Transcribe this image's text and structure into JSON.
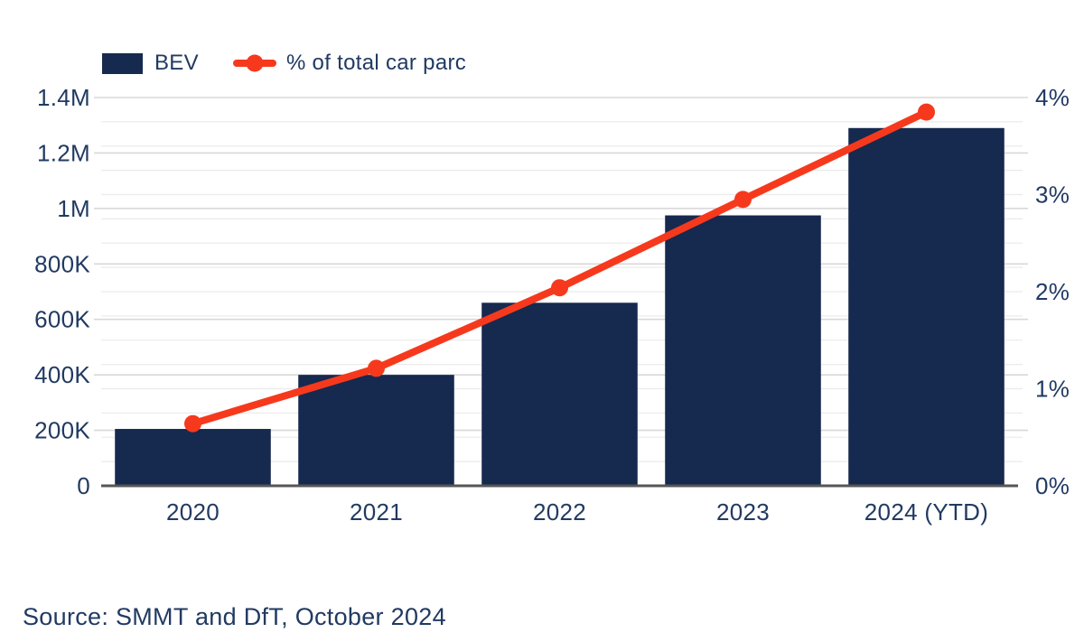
{
  "colors": {
    "navy": "#16294e",
    "orange": "#f6391d",
    "text": "#213a62",
    "grid_major": "#d8d8d8",
    "grid_minor": "#ebebeb",
    "axis_line": "#565656"
  },
  "legend": {
    "bar_label": "BEV",
    "line_label": "% of total car parc"
  },
  "chart_data": {
    "type": "bar",
    "categories": [
      "2020",
      "2021",
      "2022",
      "2023",
      "2024 (YTD)"
    ],
    "series": [
      {
        "name": "BEV",
        "type": "bar",
        "axis": "left",
        "color": "#16294e",
        "values": [
          205000,
          400000,
          660000,
          975000,
          1290000
        ]
      },
      {
        "name": "% of total car parc",
        "type": "line",
        "axis": "right",
        "color": "#f6391d",
        "values": [
          0.64,
          1.21,
          2.04,
          2.95,
          3.85
        ]
      }
    ],
    "left_axis": {
      "ticks": [
        "0",
        "200K",
        "400K",
        "600K",
        "800K",
        "1M",
        "1.2M",
        "1.4M"
      ],
      "min": 0,
      "max": 1400000
    },
    "right_axis": {
      "ticks": [
        "0%",
        "1%",
        "2%",
        "3%",
        "4%"
      ],
      "min": 0,
      "max": 4,
      "minor_step_pct": 0.25
    },
    "title": "",
    "xlabel": "",
    "ylabel": "",
    "grid": true,
    "legend_position": "top-left"
  },
  "source": "Source: SMMT and DfT, October 2024"
}
